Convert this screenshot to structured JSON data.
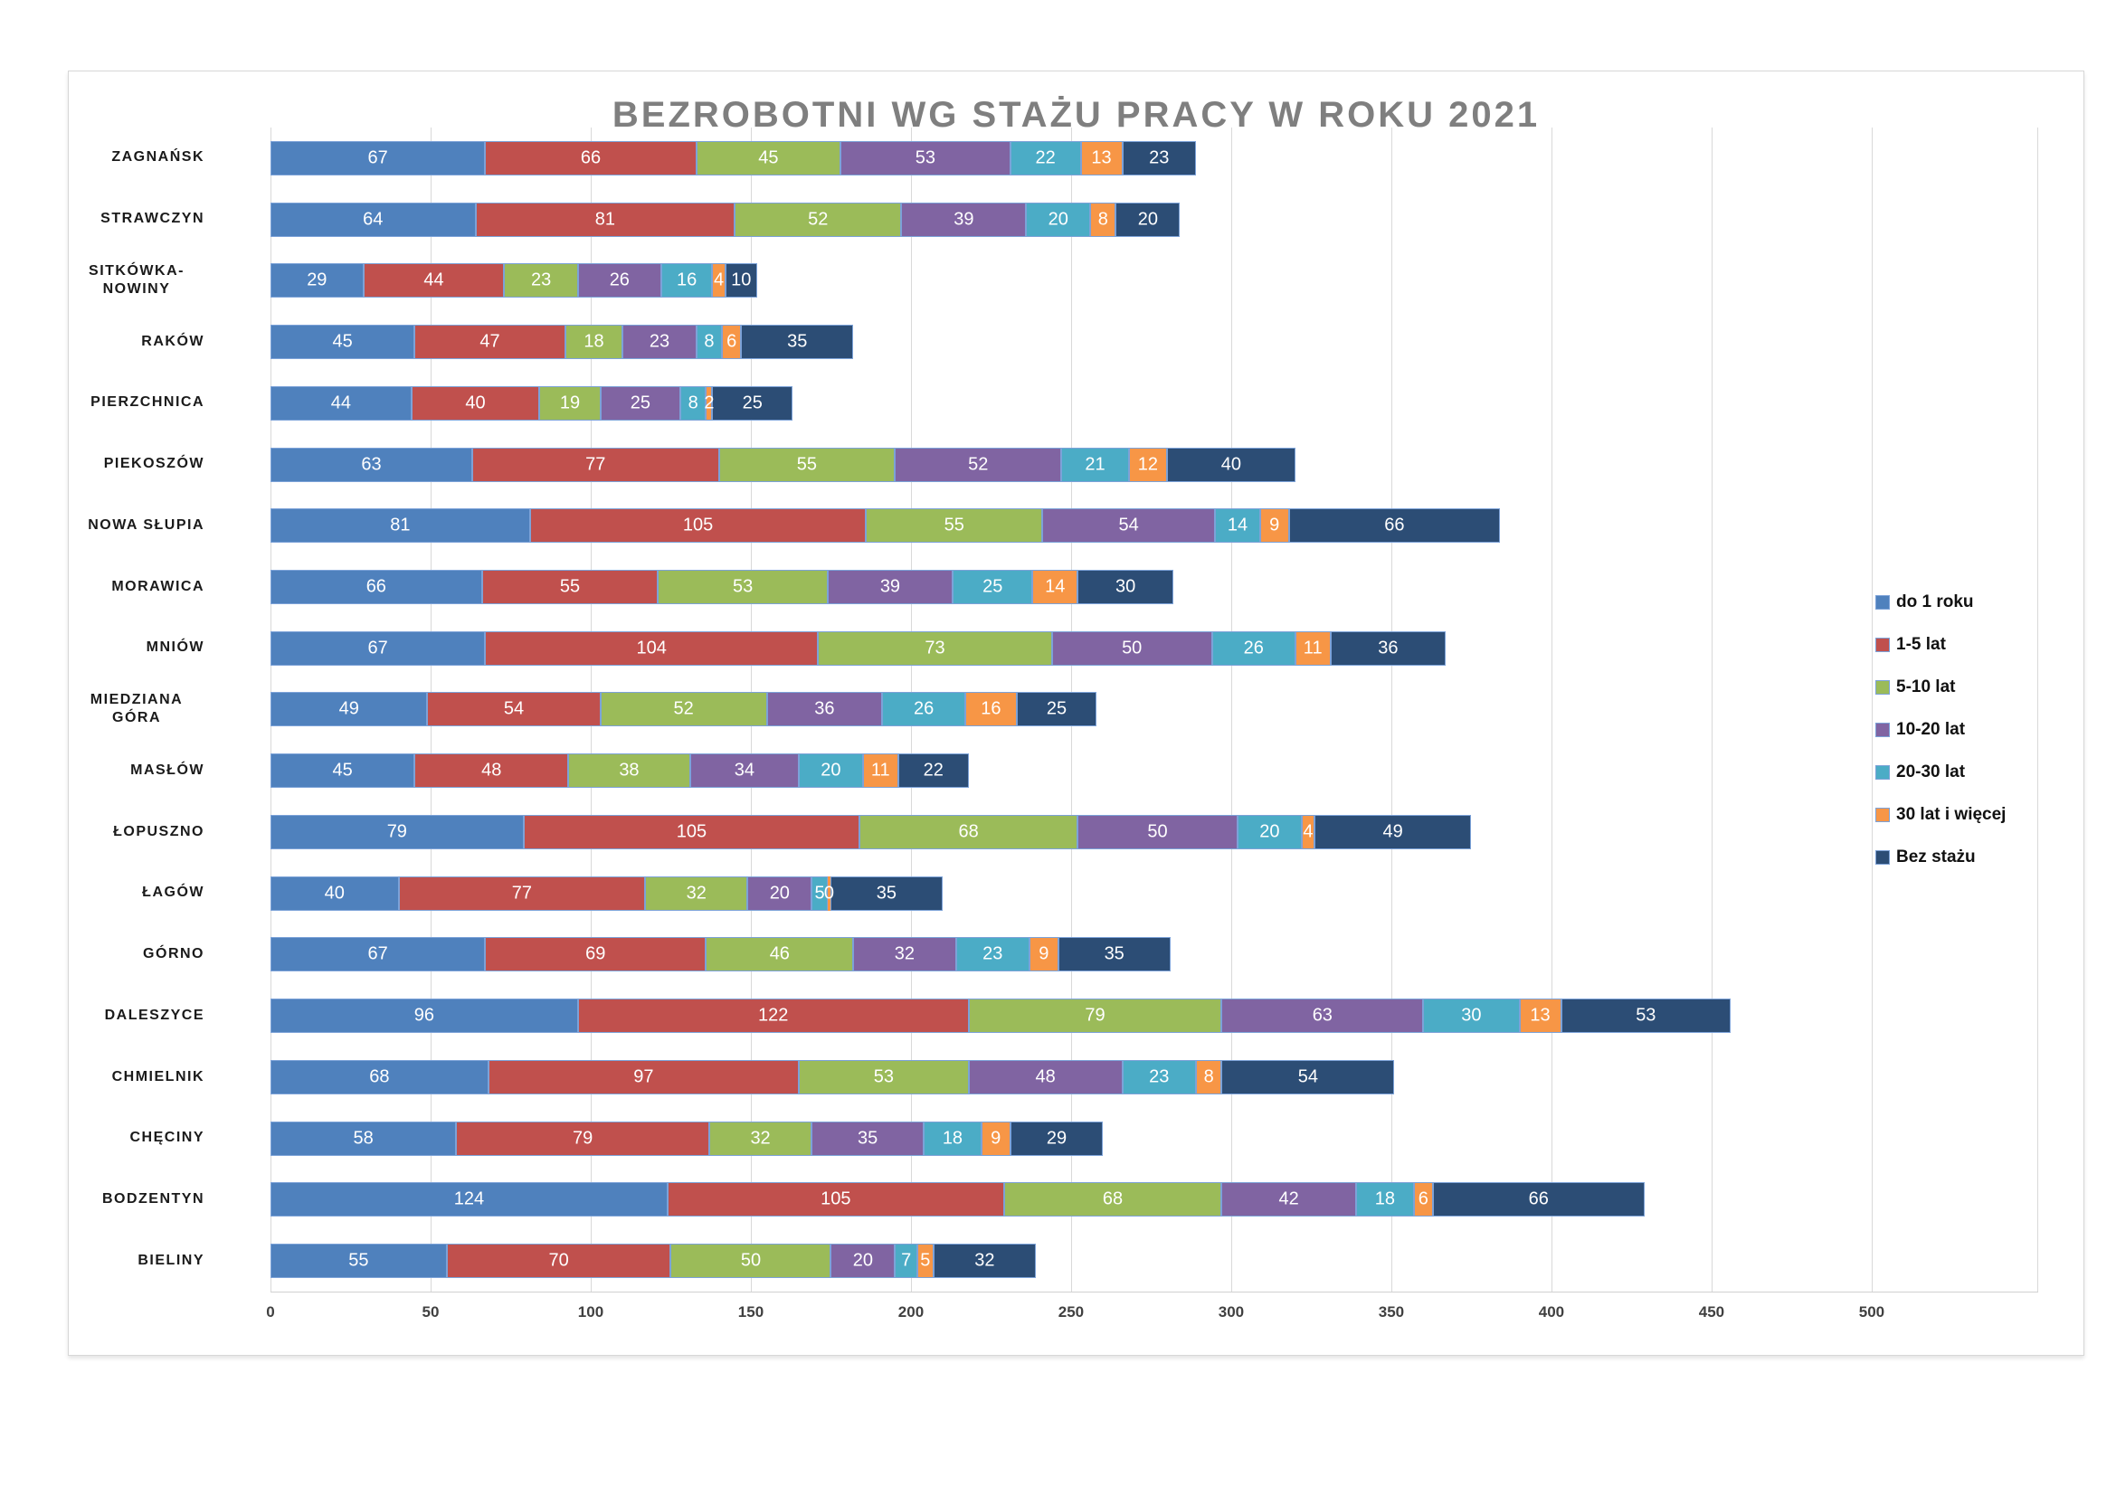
{
  "chart_data": {
    "type": "bar",
    "orientation": "horizontal",
    "stacked": true,
    "title": "BEZROBOTNI WG STAŻU PRACY W ROKU 2021",
    "categories": [
      "ZAGNAŃSK",
      "STRAWCZYN",
      "SITKÓWKA-NOWINY",
      "RAKÓW",
      "PIERZCHNICA",
      "PIEKOSZÓW",
      "NOWA SŁUPIA",
      "MORAWICA",
      "MNIÓW",
      "MIEDZIANA GÓRA",
      "MASŁÓW",
      "ŁOPUSZNO",
      "ŁAGÓW",
      "GÓRNO",
      "DALESZYCE",
      "CHMIELNIK",
      "CHĘCINY",
      "BODZENTYN",
      "BIELINY"
    ],
    "series": [
      {
        "name": "do 1 roku",
        "color": "#4F81BD",
        "values": [
          67,
          64,
          29,
          45,
          44,
          63,
          81,
          66,
          67,
          49,
          45,
          79,
          40,
          67,
          96,
          68,
          58,
          124,
          55
        ]
      },
      {
        "name": "1-5 lat",
        "color": "#C0504D",
        "values": [
          66,
          81,
          44,
          47,
          40,
          77,
          105,
          55,
          104,
          54,
          48,
          105,
          77,
          69,
          122,
          97,
          79,
          105,
          70
        ]
      },
      {
        "name": "5-10 lat",
        "color": "#9BBB59",
        "values": [
          45,
          52,
          23,
          18,
          19,
          55,
          55,
          53,
          73,
          52,
          38,
          68,
          32,
          46,
          79,
          53,
          32,
          68,
          50
        ]
      },
      {
        "name": "10-20 lat",
        "color": "#8064A2",
        "values": [
          53,
          39,
          26,
          23,
          25,
          52,
          54,
          39,
          50,
          36,
          34,
          50,
          20,
          32,
          63,
          48,
          35,
          42,
          20
        ]
      },
      {
        "name": "20-30 lat",
        "color": "#4BACC6",
        "values": [
          22,
          20,
          16,
          8,
          8,
          21,
          14,
          25,
          26,
          26,
          20,
          20,
          5,
          23,
          30,
          23,
          18,
          18,
          7
        ]
      },
      {
        "name": "30 lat i więcej",
        "color": "#F79646",
        "values": [
          13,
          8,
          4,
          6,
          2,
          12,
          9,
          14,
          11,
          16,
          11,
          4,
          0,
          9,
          13,
          8,
          9,
          6,
          5
        ]
      },
      {
        "name": "Bez stażu",
        "color": "#2C4D75",
        "values": [
          23,
          20,
          10,
          35,
          25,
          40,
          66,
          30,
          36,
          25,
          22,
          49,
          35,
          35,
          53,
          54,
          29,
          66,
          32
        ]
      }
    ],
    "x_ticks": [
      0,
      50,
      100,
      150,
      200,
      250,
      300,
      350,
      400,
      450,
      500
    ],
    "xlim": [
      0,
      500
    ],
    "grid": "vertical",
    "legend_position": "right",
    "data_labels": "inside-center-white"
  },
  "colors": {
    "segment_border": "#7CA2D8",
    "gridline": "#D9D9D9",
    "title_text": "#7F7F7F",
    "axis_text": "#404040",
    "category_text": "#1A1A1A",
    "data_label_text": "#FFFFFF"
  }
}
